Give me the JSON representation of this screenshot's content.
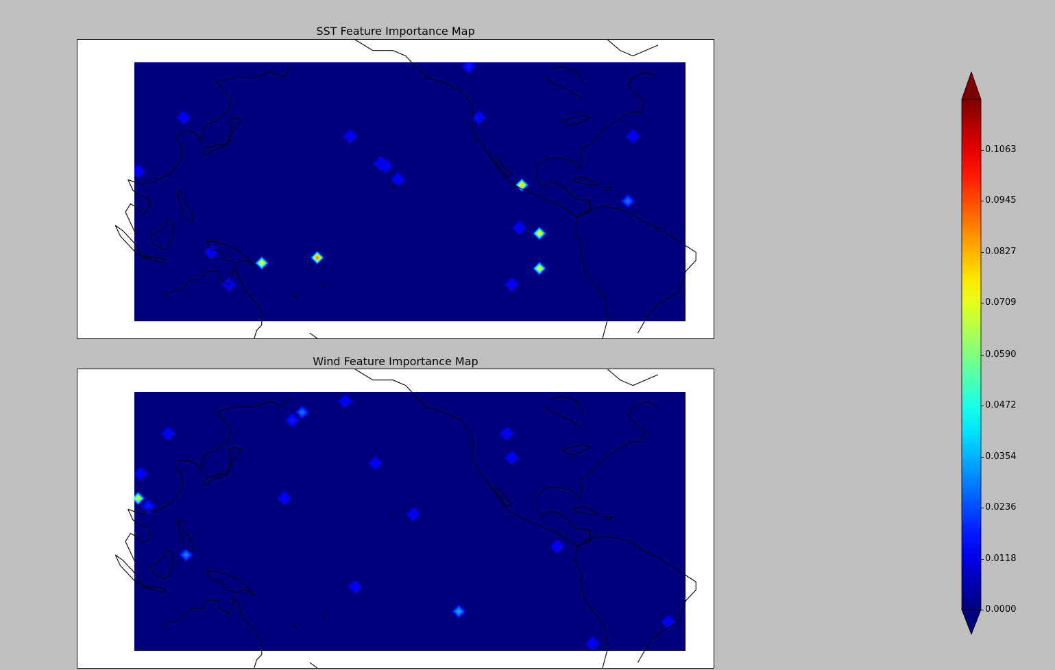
{
  "chart_data": [
    {
      "type": "heatmap",
      "title": "SST Feature Importance Map",
      "colormap": "jet",
      "vmin": 0.0,
      "vmax": 0.118,
      "background_value": 0.0,
      "points": [
        {
          "lon": 122,
          "lat": 45,
          "value": 0.006
        },
        {
          "lon": 188,
          "lat": 38,
          "value": 0.006
        },
        {
          "lon": 202,
          "lat": 27,
          "value": 0.005
        },
        {
          "lon": 207,
          "lat": 22,
          "value": 0.005
        },
        {
          "lon": 200,
          "lat": 28,
          "value": 0.005
        },
        {
          "lon": 235,
          "lat": 64,
          "value": 0.018
        },
        {
          "lon": 239,
          "lat": 45,
          "value": 0.016
        },
        {
          "lon": 256,
          "lat": 20,
          "value": 0.09
        },
        {
          "lon": 255,
          "lat": 4,
          "value": 0.011
        },
        {
          "lon": 263,
          "lat": 2,
          "value": 0.085
        },
        {
          "lon": 263,
          "lat": -11,
          "value": 0.082
        },
        {
          "lon": 252,
          "lat": -17,
          "value": 0.012
        },
        {
          "lon": 300,
          "lat": 38,
          "value": 0.01
        },
        {
          "lon": 298,
          "lat": 14,
          "value": 0.03
        },
        {
          "lon": 175,
          "lat": -7,
          "value": 0.1
        },
        {
          "lon": 153,
          "lat": -9,
          "value": 0.085
        },
        {
          "lon": 133,
          "lat": -5,
          "value": 0.009
        },
        {
          "lon": 140,
          "lat": -17,
          "value": 0.01
        },
        {
          "lon": 104,
          "lat": 25,
          "value": 0.004
        }
      ]
    },
    {
      "type": "heatmap",
      "title": "Wind Feature Importance Map",
      "colormap": "jet",
      "vmin": 0.0,
      "vmax": 0.118,
      "background_value": 0.0,
      "points": [
        {
          "lon": 169,
          "lat": 58,
          "value": 0.03
        },
        {
          "lon": 165,
          "lat": 55,
          "value": 0.018
        },
        {
          "lon": 186,
          "lat": 62,
          "value": 0.007
        },
        {
          "lon": 198,
          "lat": 39,
          "value": 0.01
        },
        {
          "lon": 250,
          "lat": 50,
          "value": 0.012
        },
        {
          "lon": 252,
          "lat": 41,
          "value": 0.014
        },
        {
          "lon": 162,
          "lat": 26,
          "value": 0.014
        },
        {
          "lon": 104,
          "lat": 26,
          "value": 0.08
        },
        {
          "lon": 108,
          "lat": 23,
          "value": 0.018
        },
        {
          "lon": 123,
          "lat": 5,
          "value": 0.032
        },
        {
          "lon": 270,
          "lat": 8,
          "value": 0.014
        },
        {
          "lon": 231,
          "lat": -16,
          "value": 0.038
        },
        {
          "lon": 190,
          "lat": -7,
          "value": 0.006
        },
        {
          "lon": 213,
          "lat": 20,
          "value": 0.009
        },
        {
          "lon": 116,
          "lat": 50,
          "value": 0.004
        },
        {
          "lon": 284,
          "lat": -28,
          "value": 0.005
        },
        {
          "lon": 314,
          "lat": -20,
          "value": 0.004
        },
        {
          "lon": 105,
          "lat": 35,
          "value": 0.012
        }
      ]
    }
  ],
  "colorbar": {
    "ticks": [
      "0.0000",
      "0.0118",
      "0.0236",
      "0.0354",
      "0.0472",
      "0.0590",
      "0.0709",
      "0.0827",
      "0.0945",
      "0.1063"
    ],
    "extend": "both"
  }
}
